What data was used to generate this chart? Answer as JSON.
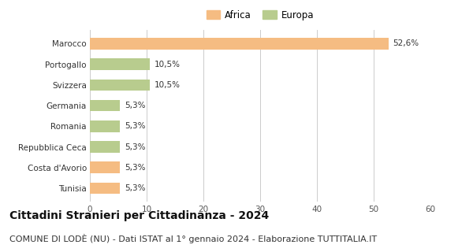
{
  "categories": [
    "Tunisia",
    "Costa d'Avorio",
    "Repubblica Ceca",
    "Romania",
    "Germania",
    "Svizzera",
    "Portogallo",
    "Marocco"
  ],
  "values": [
    5.3,
    5.3,
    5.3,
    5.3,
    5.3,
    10.5,
    10.5,
    52.6
  ],
  "labels": [
    "5,3%",
    "5,3%",
    "5,3%",
    "5,3%",
    "5,3%",
    "10,5%",
    "10,5%",
    "52,6%"
  ],
  "colors": [
    "#f5bc82",
    "#f5bc82",
    "#b8cc8e",
    "#b8cc8e",
    "#b8cc8e",
    "#b8cc8e",
    "#b8cc8e",
    "#f5bc82"
  ],
  "africa_color": "#f5bc82",
  "europa_color": "#b8cc8e",
  "xlim": [
    0,
    60
  ],
  "xticks": [
    0,
    10,
    20,
    30,
    40,
    50,
    60
  ],
  "title": "Cittadini Stranieri per Cittadinanza - 2024",
  "subtitle": "COMUNE DI LODÈ (NU) - Dati ISTAT al 1° gennaio 2024 - Elaborazione TUTTITALIA.IT",
  "title_fontsize": 10,
  "subtitle_fontsize": 8,
  "legend_africa": "Africa",
  "legend_europa": "Europa",
  "bg_color": "#ffffff",
  "bar_height": 0.55
}
